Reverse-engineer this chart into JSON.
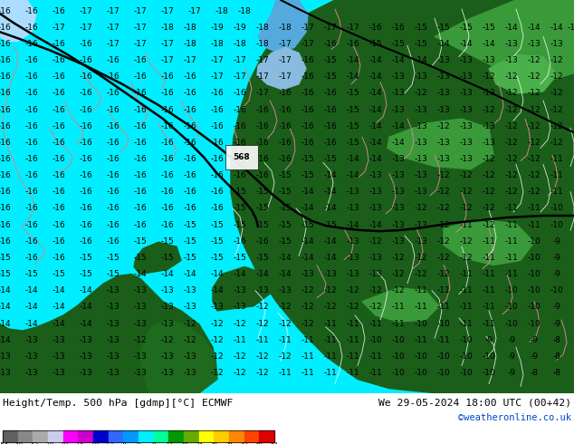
{
  "title_left": "Height/Temp. 500 hPa [gdmp][°C] ECMWF",
  "title_right": "We 29-05-2024 18:00 UTC (00+42)",
  "credit": "©weatheronline.co.uk",
  "colorbar_labels": [
    "-54",
    "-48",
    "-42",
    "-38",
    "-30",
    "-24",
    "-18",
    "-12",
    "-8",
    "0",
    "8",
    "12",
    "18",
    "24",
    "30",
    "38",
    "42",
    "48",
    "54"
  ],
  "cbar_colors": [
    "#606060",
    "#888888",
    "#aaaaaa",
    "#ccccee",
    "#ff00ff",
    "#cc00cc",
    "#0000cc",
    "#3366ff",
    "#0099ff",
    "#00eeff",
    "#00ff99",
    "#009900",
    "#66aa00",
    "#ffff00",
    "#ffcc00",
    "#ff8800",
    "#ff4400",
    "#dd0000"
  ],
  "fig_width": 6.34,
  "fig_height": 4.9,
  "dpi": 100,
  "map_cyan": "#00eeff",
  "map_dark_green": "#1a5e1a",
  "map_light_green": "#2a7a2a",
  "map_lighter_green": "#3a9a3a",
  "map_blue_patch": "#55aadd",
  "map_light_blue": "#88ccff",
  "border_color": "#cc8888",
  "white_contour": "#ffffff",
  "black_contour": "#000000"
}
